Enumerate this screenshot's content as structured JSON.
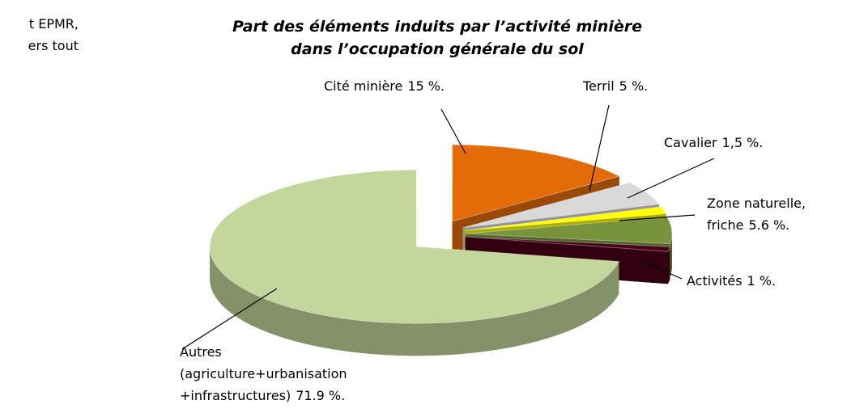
{
  "page_text": [
    "t EPMR,",
    "ers tout"
  ],
  "chart_data": {
    "type": "pie",
    "title": [
      "Part des éléments induits par l’activité minière",
      "dans l’occupation générale du sol"
    ],
    "categories": [
      [
        "Cité minière"
      ],
      [
        "Terril"
      ],
      [
        "Cavalier"
      ],
      [
        "Zone naturelle,",
        "friche"
      ],
      [
        "Activités"
      ],
      [
        "Autres",
        "(agriculture+urbanisation",
        "+infrastructures)"
      ]
    ],
    "values": [
      15,
      5,
      1.5,
      5.6,
      1,
      71.9
    ],
    "value_labels": [
      "15 %.",
      "5 %.",
      "1,5 %.",
      "5.6 %.",
      "1 %.",
      "71.9 %."
    ],
    "colors": [
      "#e36c09",
      "#d9d9d9",
      "#ffff00",
      "#77933c",
      "#4a0018",
      "#c3d69b"
    ]
  }
}
